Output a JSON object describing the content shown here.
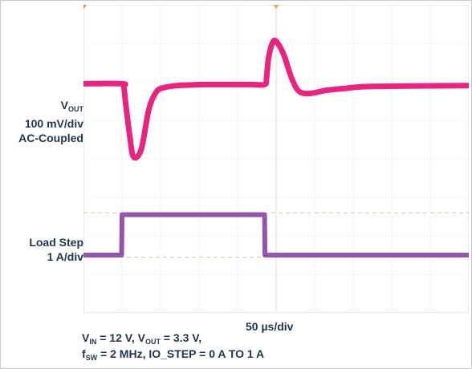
{
  "channels": {
    "vout": {
      "name": "V",
      "sub": "OUT",
      "scale": "100 mV/div",
      "coupling": "AC-Coupled",
      "color": "#e6197a"
    },
    "load": {
      "name": "Load Step",
      "scale": "1 A/div",
      "color": "#8c4bab"
    }
  },
  "timebase": "50 µs/div",
  "conditions": {
    "vin_sym": "V",
    "vin_sub": "IN",
    "vin_val": " = 12 V, ",
    "vout_sym": "V",
    "vout_sub": "OUT",
    "vout_val": " = 3.3 V,",
    "fsw_sym": "f",
    "fsw_sub": "SW",
    "fsw_val": " = 2 MHz, IO_STEP = 0 A TO 1 A"
  },
  "chart_data": {
    "type": "line",
    "x_unit": "div",
    "xlim": [
      0,
      10
    ],
    "ylim_divs": 8,
    "grid": true,
    "trigger_marker_x": 0,
    "series": [
      {
        "name": "V",
        "x": [
          0,
          1.0,
          1.05,
          1.1,
          1.2,
          1.3,
          1.5,
          1.7,
          1.9,
          2.1,
          2.4,
          2.8,
          3.2,
          4.3,
          4.7,
          4.75,
          4.8,
          4.9,
          5.0,
          5.2,
          5.4,
          5.6,
          5.9,
          6.3,
          6.8,
          7.5,
          10
        ],
        "y": [
          5.95,
          5.95,
          5.85,
          5.4,
          4.6,
          4.05,
          4.25,
          5.3,
          5.75,
          5.85,
          5.9,
          5.92,
          5.93,
          5.93,
          5.93,
          6.1,
          6.6,
          7.0,
          7.05,
          6.7,
          6.1,
          5.75,
          5.7,
          5.78,
          5.83,
          5.88,
          5.9
        ]
      },
      {
        "name": "Load Step",
        "x": [
          0,
          0.99,
          1.0,
          4.7,
          4.71,
          10
        ],
        "y": [
          1.5,
          1.5,
          2.55,
          2.55,
          1.5,
          1.5
        ]
      }
    ],
    "reference_lines_y": [
      2.6,
      1.45
    ]
  }
}
